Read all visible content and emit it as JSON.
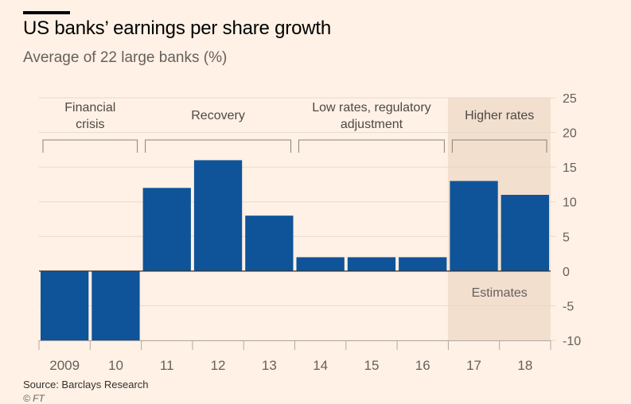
{
  "header": {
    "title": "US banks’ earnings per share growth",
    "subtitle": "Average of 22 large banks (%)"
  },
  "footer": {
    "source": "Source: Barclays Research",
    "copyright": "© FT"
  },
  "colors": {
    "background": "#fff1e5",
    "bar": "#0f5499",
    "highlight_band": "#f2dfce",
    "gridline": "#e6d9ce",
    "zero_line": "#33302e"
  },
  "chart_data": {
    "type": "bar",
    "title": "US banks’ earnings per share growth",
    "subtitle": "Average of 22 large banks (%)",
    "categories": [
      "2009",
      "10",
      "11",
      "12",
      "13",
      "14",
      "15",
      "16",
      "17",
      "18"
    ],
    "values": [
      -10,
      -10,
      12,
      16,
      8,
      2,
      2,
      2,
      13,
      11
    ],
    "ylim": [
      -10,
      25
    ],
    "yticks": [
      -10,
      -5,
      0,
      5,
      10,
      15,
      20,
      25
    ],
    "y_axis_side": "right",
    "grid": true,
    "periods": [
      {
        "label_lines": [
          "Financial",
          "crisis"
        ],
        "start": 0,
        "end": 1
      },
      {
        "label_lines": [
          "Recovery"
        ],
        "start": 2,
        "end": 4
      },
      {
        "label_lines": [
          "Low rates, regulatory",
          "adjustment"
        ],
        "start": 5,
        "end": 7
      },
      {
        "label_lines": [
          "Higher rates"
        ],
        "start": 8,
        "end": 9
      }
    ],
    "highlight": {
      "start": 8,
      "end": 9,
      "annotation": "Estimates"
    }
  }
}
